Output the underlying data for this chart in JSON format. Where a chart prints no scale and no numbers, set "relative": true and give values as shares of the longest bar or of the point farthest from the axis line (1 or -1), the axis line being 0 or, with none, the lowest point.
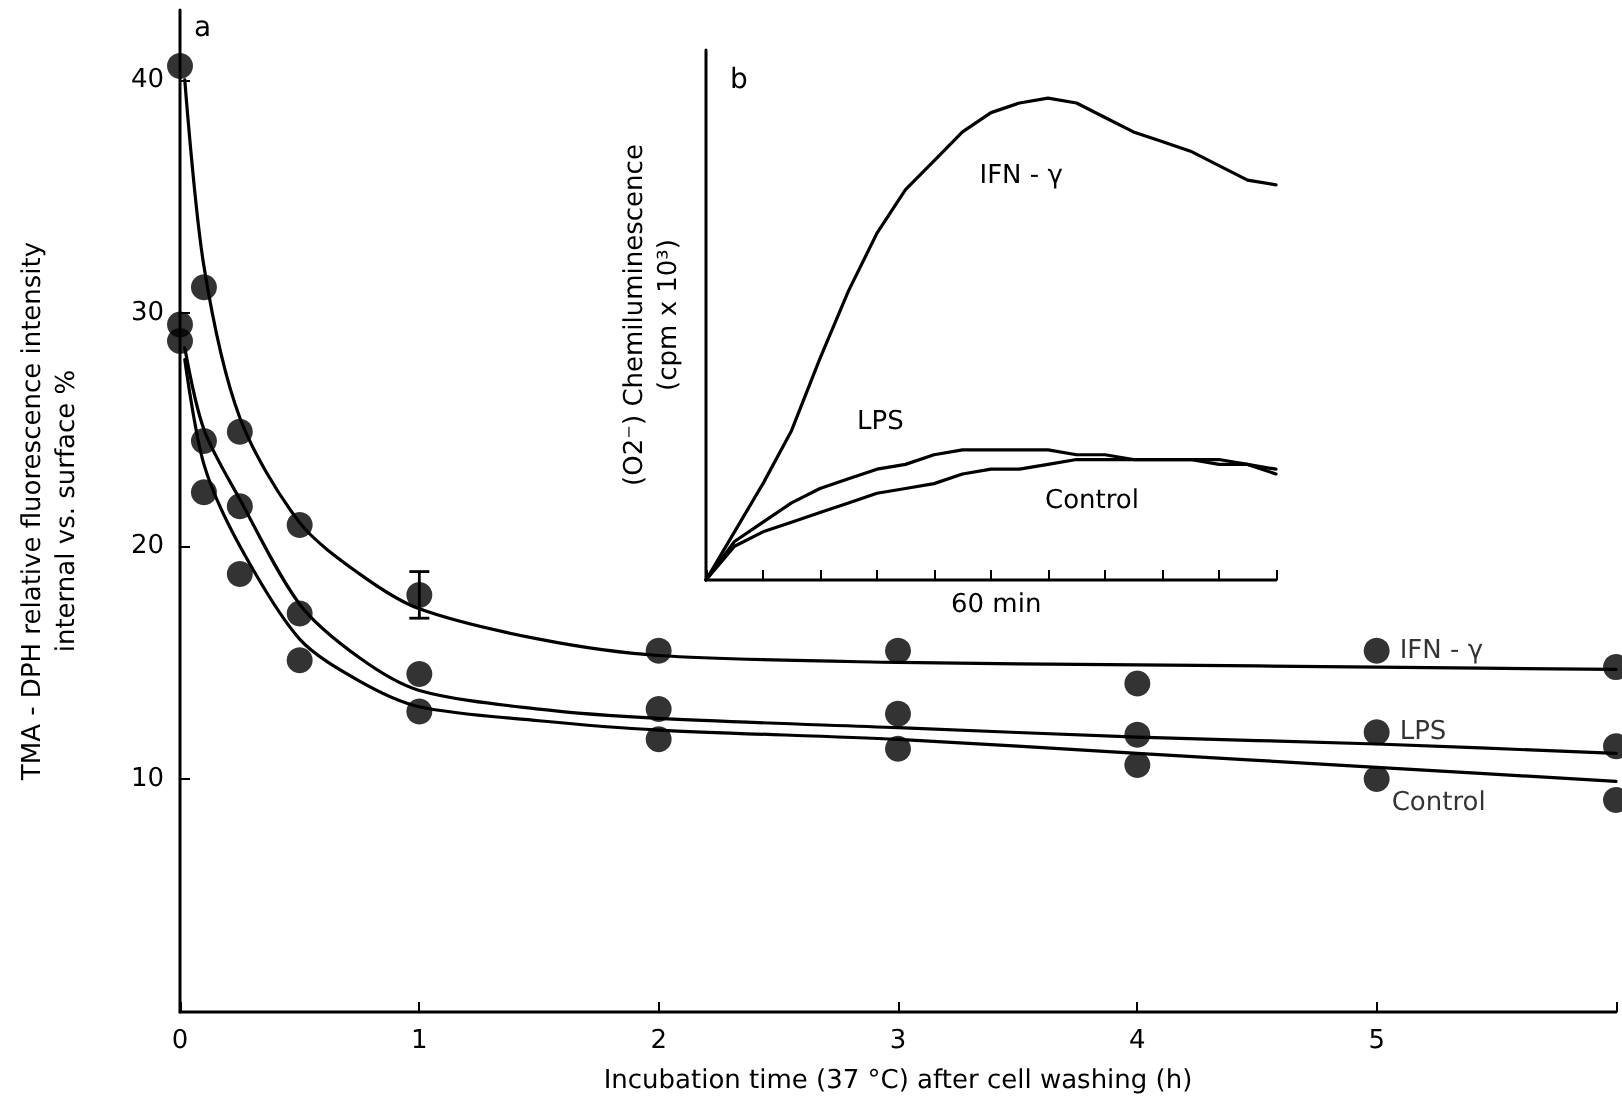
{
  "chart_data": [
    {
      "type": "scatter",
      "title": "a",
      "xlabel": "Incubation time (37 °C) after cell washing (h)",
      "ylabel": "TMA - DPH relative fluorescence intensity\ninternal vs. surface %",
      "xlim": [
        0,
        6
      ],
      "xticks": [
        0,
        1,
        2,
        3,
        4,
        5,
        {
          "value": 6,
          "label": null
        }
      ],
      "ylim": [
        0,
        43
      ],
      "yticks": [
        10,
        20,
        30,
        40
      ],
      "grid": false,
      "legend": false,
      "marker": "circle",
      "series": [
        {
          "name": "IFN - γ",
          "color": "#000000",
          "x": [
            0,
            0.1,
            0.25,
            0.5,
            1,
            2,
            3,
            4,
            5,
            6
          ],
          "values": [
            40.6,
            31.1,
            24.9,
            20.9,
            17.9,
            15.5,
            15.5,
            14.1,
            15.5,
            14.8
          ],
          "errors": [
            null,
            null,
            null,
            null,
            1.0,
            null,
            null,
            null,
            null,
            null
          ]
        },
        {
          "name": "LPS",
          "color": "#000000",
          "x": [
            0,
            0.1,
            0.25,
            0.5,
            1,
            2,
            3,
            4,
            5,
            6
          ],
          "values": [
            29.5,
            24.5,
            21.7,
            17.1,
            14.5,
            13.0,
            12.8,
            11.9,
            12.0,
            11.4
          ]
        },
        {
          "name": "Control",
          "color": "#000000",
          "x": [
            0,
            0.1,
            0.25,
            0.5,
            1,
            2,
            3,
            4,
            5,
            6
          ],
          "values": [
            28.8,
            22.3,
            18.8,
            15.1,
            12.9,
            11.7,
            11.3,
            10.6,
            10.0,
            9.1
          ]
        },
        {
          "type": "line",
          "marker": "none",
          "color": "#000000",
          "x": [
            0.02,
            0.1,
            0.25,
            0.5,
            0.75,
            1,
            1.5,
            2,
            3,
            4,
            5,
            6
          ],
          "values": [
            40,
            32,
            25.5,
            21,
            18.8,
            17.3,
            16,
            15.3,
            15.0,
            14.9,
            14.8,
            14.7
          ]
        },
        {
          "type": "line",
          "marker": "none",
          "color": "#000000",
          "x": [
            0.02,
            0.1,
            0.25,
            0.5,
            0.75,
            1,
            1.5,
            2,
            3,
            4,
            5,
            6
          ],
          "values": [
            28.5,
            25,
            22,
            17.5,
            15.2,
            13.8,
            13.0,
            12.6,
            12.2,
            11.8,
            11.5,
            11.1
          ]
        },
        {
          "type": "line",
          "marker": "none",
          "color": "#000000",
          "x": [
            0.02,
            0.1,
            0.25,
            0.5,
            0.75,
            1,
            1.5,
            2,
            3,
            4,
            5,
            6
          ],
          "values": [
            28,
            23.5,
            20,
            16,
            14.2,
            13.1,
            12.5,
            12.1,
            11.7,
            11.1,
            10.5,
            9.9
          ]
        }
      ]
    },
    {
      "type": "line",
      "title": "b",
      "ylabel": "(O2⁻) Chemiluminescence\n(cpm x 10³)",
      "relative": true,
      "annotations": [
        "60 min"
      ],
      "categories": [
        null,
        null,
        null,
        null,
        null,
        null,
        null,
        null,
        null,
        null,
        null,
        null,
        null,
        null,
        null,
        null,
        null,
        null,
        null,
        null,
        null
      ],
      "grid": false,
      "legend": false,
      "marker": "none",
      "series": [
        {
          "name": "IFN - γ",
          "color": "#000000",
          "values": [
            0,
            0.1,
            0.2,
            0.31,
            0.46,
            0.6,
            0.72,
            0.81,
            0.87,
            0.93,
            0.97,
            0.99,
            1,
            0.99,
            0.96,
            0.93,
            0.91,
            0.89,
            0.86,
            0.83,
            0.82
          ]
        },
        {
          "name": "LPS",
          "color": "#000000",
          "values": [
            0,
            0.08,
            0.12,
            0.16,
            0.19,
            0.21,
            0.23,
            0.24,
            0.26,
            0.27,
            0.27,
            0.27,
            0.27,
            0.26,
            0.26,
            0.25,
            0.25,
            0.25,
            0.24,
            0.24,
            0.23
          ]
        },
        {
          "name": "Control",
          "color": "#000000",
          "values": [
            0,
            0.07,
            0.1,
            0.12,
            0.14,
            0.16,
            0.18,
            0.19,
            0.2,
            0.22,
            0.23,
            0.23,
            0.24,
            0.25,
            0.25,
            0.25,
            0.25,
            0.25,
            0.25,
            0.24,
            0.22
          ]
        }
      ]
    }
  ]
}
